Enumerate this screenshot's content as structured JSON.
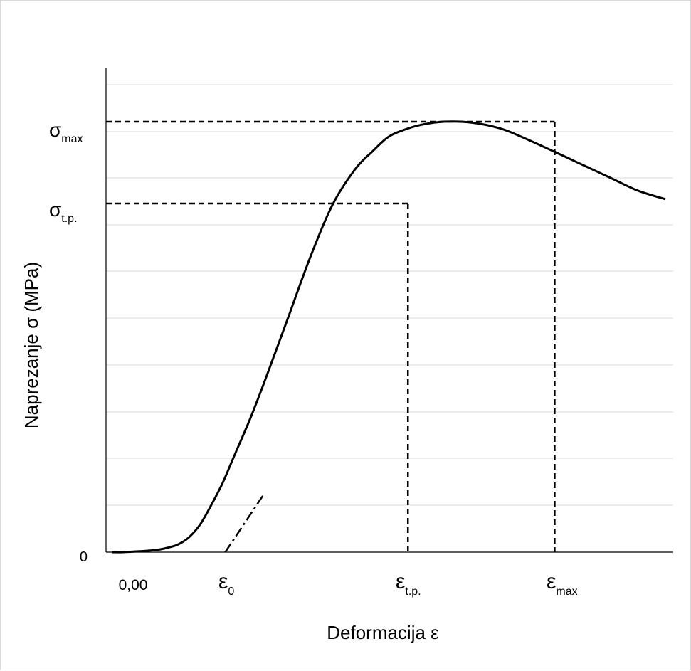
{
  "chart_data": {
    "type": "line",
    "title": "",
    "xlabel": "Deformacija ε",
    "ylabel": "Naprezanje σ (MPa)",
    "xlim": [
      0,
      1
    ],
    "ylim": [
      0,
      1
    ],
    "grid": true,
    "x_tick_origin": "0,00",
    "y_tick_origin": "0",
    "series": [
      {
        "x": [
          0,
          0.02,
          0.05,
          0.08,
          0.1,
          0.12,
          0.14,
          0.16,
          0.18,
          0.2,
          0.22,
          0.25,
          0.28,
          0.32,
          0.36,
          0.4,
          0.44,
          0.47,
          0.5,
          0.53,
          0.56,
          0.6,
          0.65,
          0.7,
          0.74,
          0.8,
          0.85,
          0.9,
          0.95,
          1.0
        ],
        "y": [
          0,
          0,
          0.002,
          0.005,
          0.01,
          0.018,
          0.035,
          0.065,
          0.11,
          0.16,
          0.22,
          0.31,
          0.41,
          0.55,
          0.69,
          0.81,
          0.89,
          0.93,
          0.965,
          0.982,
          0.993,
          1.0,
          0.998,
          0.985,
          0.965,
          0.93,
          0.9,
          0.87,
          0.84,
          0.82
        ]
      }
    ],
    "tangent": {
      "x": [
        0.205,
        0.275
      ],
      "y": [
        0,
        0.135
      ]
    },
    "markers": [
      {
        "name": "σmax",
        "base": "σ",
        "sub": "max",
        "axis": "y",
        "x": 0.8,
        "y": 1.0,
        "x_label": "ε",
        "x_sub": "max"
      },
      {
        "name": "σt.p.",
        "base": "σ",
        "sub": "t.p.",
        "axis": "y",
        "x": 0.535,
        "y": 0.81,
        "x_label": "ε",
        "x_sub": "t.p."
      }
    ],
    "eps0": {
      "base": "ε",
      "sub": "0",
      "x": 0.205
    }
  }
}
